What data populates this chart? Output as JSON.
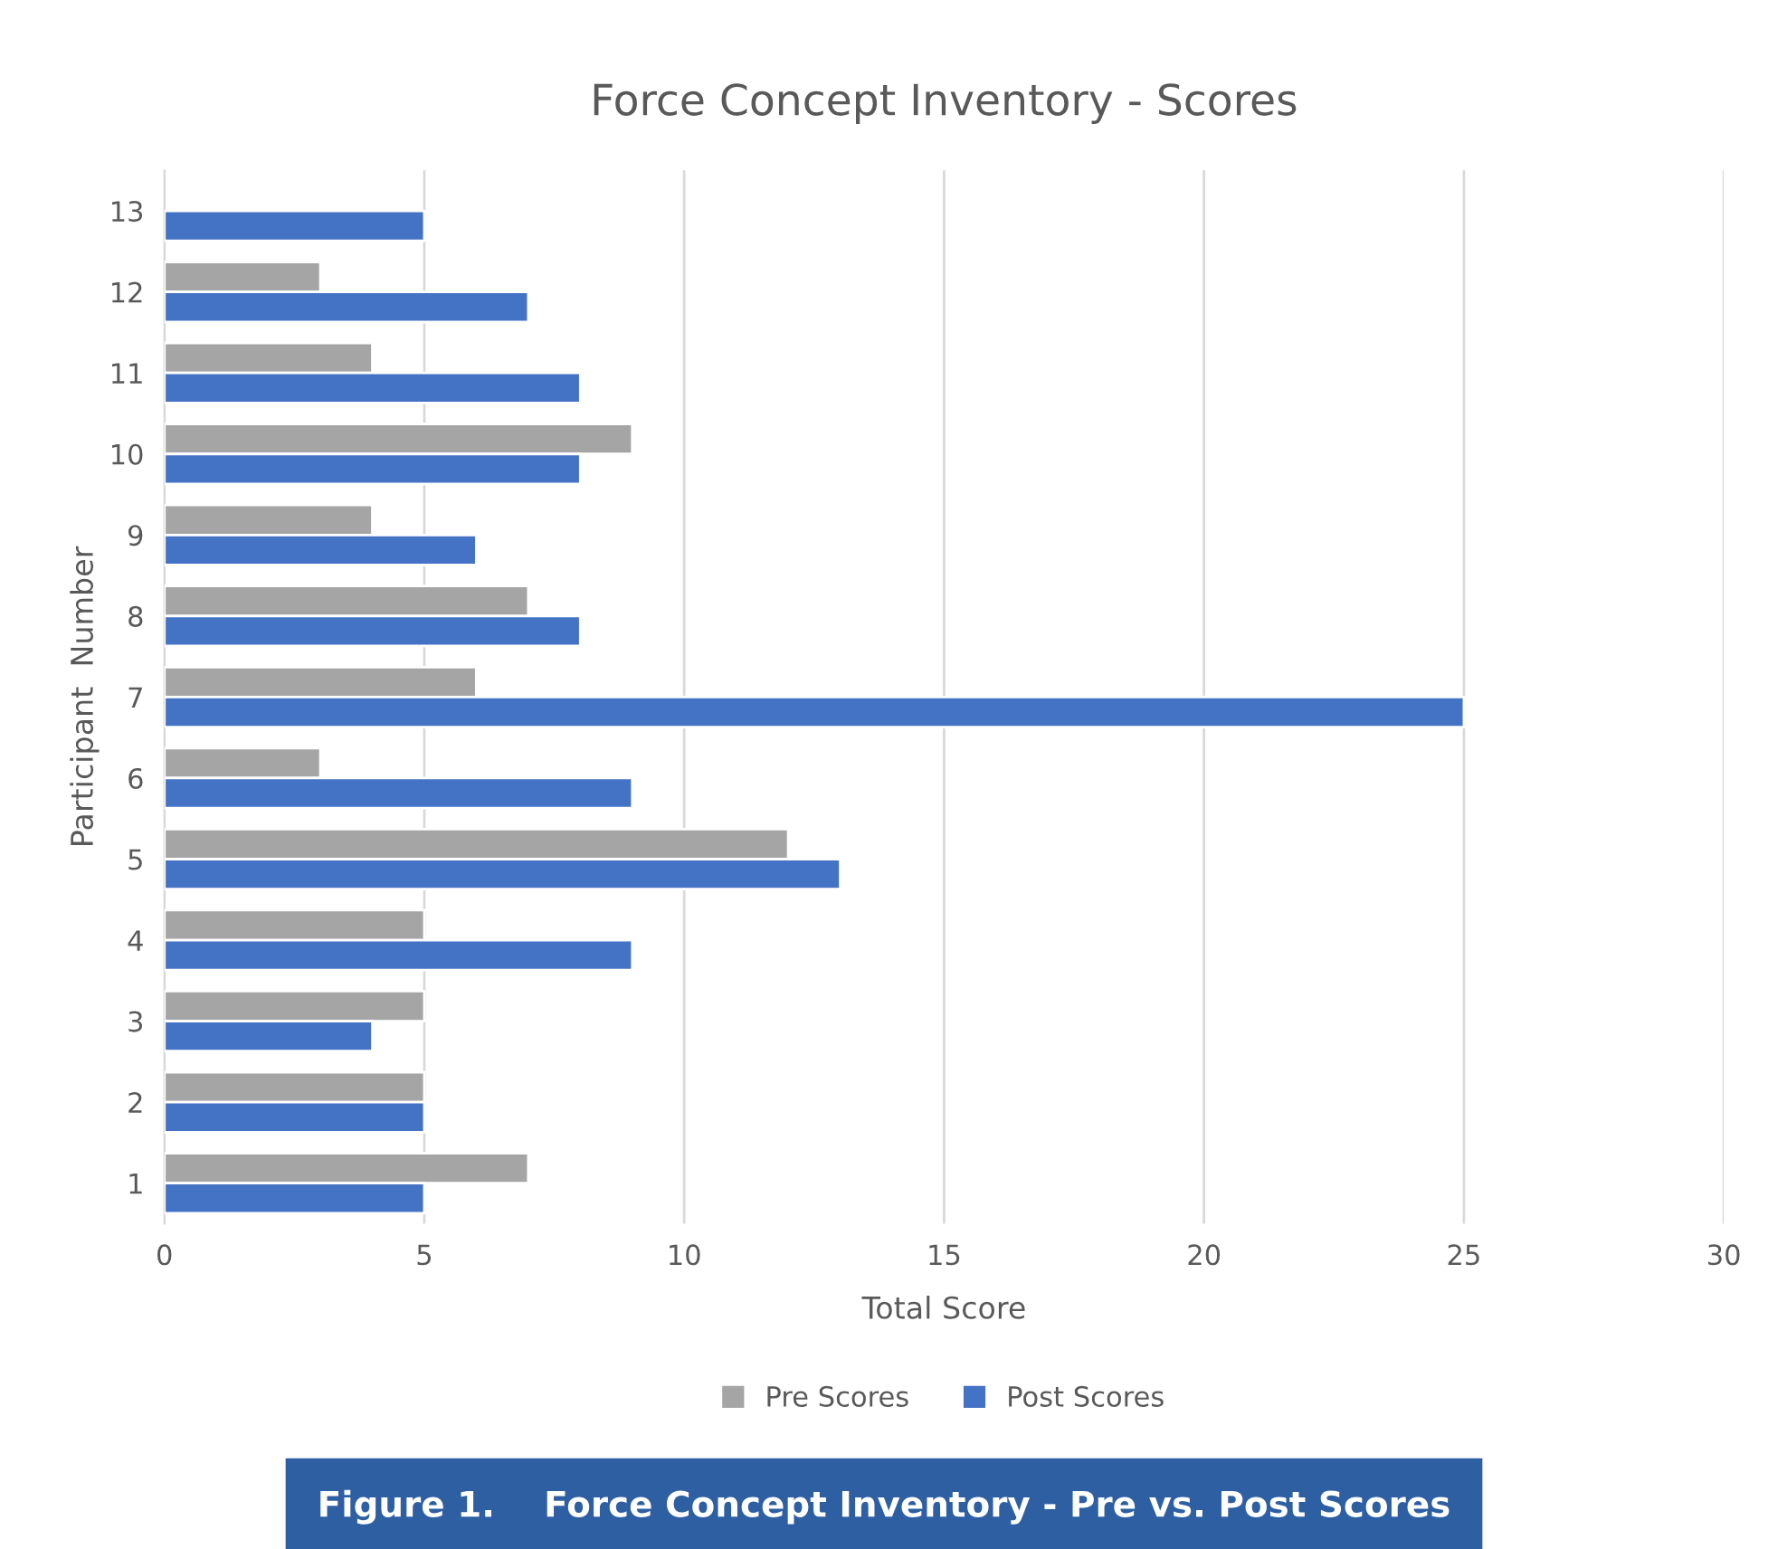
{
  "chart_data": {
    "type": "bar",
    "orientation": "horizontal",
    "title": "Force Concept Inventory - Scores",
    "xlabel": "Total Score",
    "ylabel": "Participant  Number",
    "categories": [
      "13",
      "12",
      "11",
      "10",
      "9",
      "8",
      "7",
      "6",
      "5",
      "4",
      "3",
      "2",
      "1"
    ],
    "series": [
      {
        "name": "Pre Scores",
        "color": "#a5a5a5",
        "values": [
          null,
          3,
          4,
          9,
          4,
          7,
          6,
          3,
          12,
          5,
          5,
          5,
          7
        ]
      },
      {
        "name": "Post Scores",
        "color": "#4472c4",
        "values": [
          5,
          7,
          8,
          8,
          6,
          8,
          25,
          9,
          13,
          9,
          4,
          5,
          5
        ]
      }
    ],
    "xlim": [
      0,
      30
    ],
    "xticks": [
      0,
      5,
      10,
      15,
      20,
      25,
      30
    ],
    "grid": "x",
    "legend": "bottom",
    "annotations": [
      "Figure 1.    Force Concept Inventory - Pre vs. Post Scores"
    ]
  }
}
